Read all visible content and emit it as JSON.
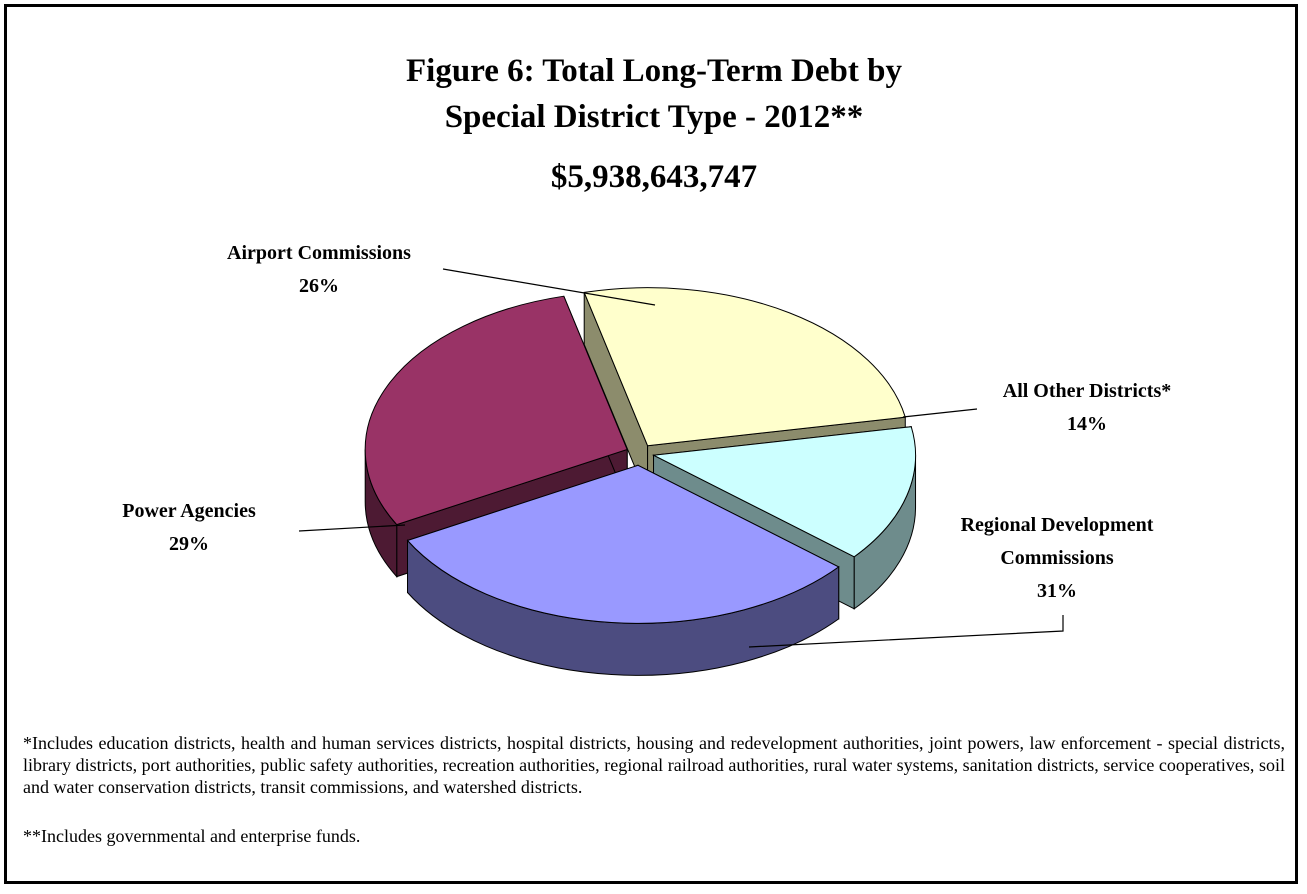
{
  "chart_data": {
    "type": "pie",
    "title": "Figure 6:  Total Long-Term Debt by",
    "title_line2": "Special District Type - 2012**",
    "subtitle": "$5,938,643,747",
    "slices": [
      {
        "label": "Airport Commissions",
        "value": 26,
        "pct_text": "26%",
        "color": "#FFFFCC",
        "side": "#8C8C6C"
      },
      {
        "label": "All Other Districts*",
        "value": 14,
        "pct_text": "14%",
        "color": "#CCFFFF",
        "side": "#6E8C8C"
      },
      {
        "label_lines": [
          "Regional Development",
          "Commissions"
        ],
        "label": "Regional Development Commissions",
        "value": 31,
        "pct_text": "31%",
        "color": "#9999FF",
        "side": "#4C4C80"
      },
      {
        "label": "Power Agencies",
        "value": 29,
        "pct_text": "29%",
        "color": "#993366",
        "side": "#4D1A33"
      }
    ]
  },
  "footnotes": {
    "note1": "*Includes education districts, health and human services districts, hospital districts, housing and redevelopment authorities, joint powers, law enforcement - special districts, library districts, port authorities, public safety authorities, recreation authorities, regional railroad authorities, rural water systems, sanitation districts, service cooperatives, soil and water conservation districts, transit commissions, and watershed districts.",
    "note2": "**Includes governmental and enterprise funds."
  }
}
